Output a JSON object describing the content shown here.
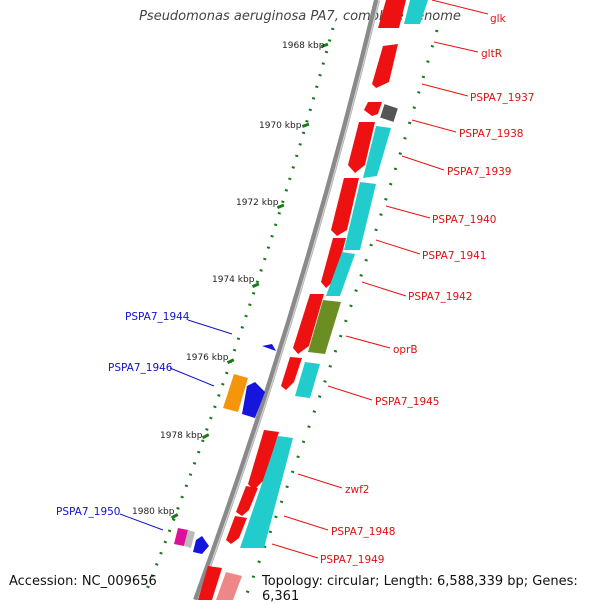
{
  "title": "Pseudomonas aeruginosa PA7, complete genome",
  "footer": {
    "accession": "Accession: NC_009656",
    "summary": "Topology: circular; Length: 6,588,339 bp; Genes: 6,361"
  },
  "colors": {
    "backbone": "#8a8a8a",
    "tick": "#1a7a1a",
    "label_fwd": "#dd1111",
    "label_rev": "#1111cc",
    "cds": "#ee1111",
    "gene": "#22cccc"
  },
  "ticks": [
    "1968 kbp",
    "1970 kbp",
    "1972 kbp",
    "1974 kbp",
    "1976 kbp",
    "1978 kbp",
    "1980 kbp"
  ],
  "genes_forward": [
    "glk",
    "gltR",
    "PSPA7_1937",
    "PSPA7_1938",
    "PSPA7_1939",
    "PSPA7_1940",
    "PSPA7_1941",
    "PSPA7_1942",
    "oprB",
    "PSPA7_1945",
    "zwf2",
    "PSPA7_1948",
    "PSPA7_1949"
  ],
  "genes_reverse": [
    "PSPA7_1944",
    "PSPA7_1946",
    "PSPA7_1950"
  ]
}
